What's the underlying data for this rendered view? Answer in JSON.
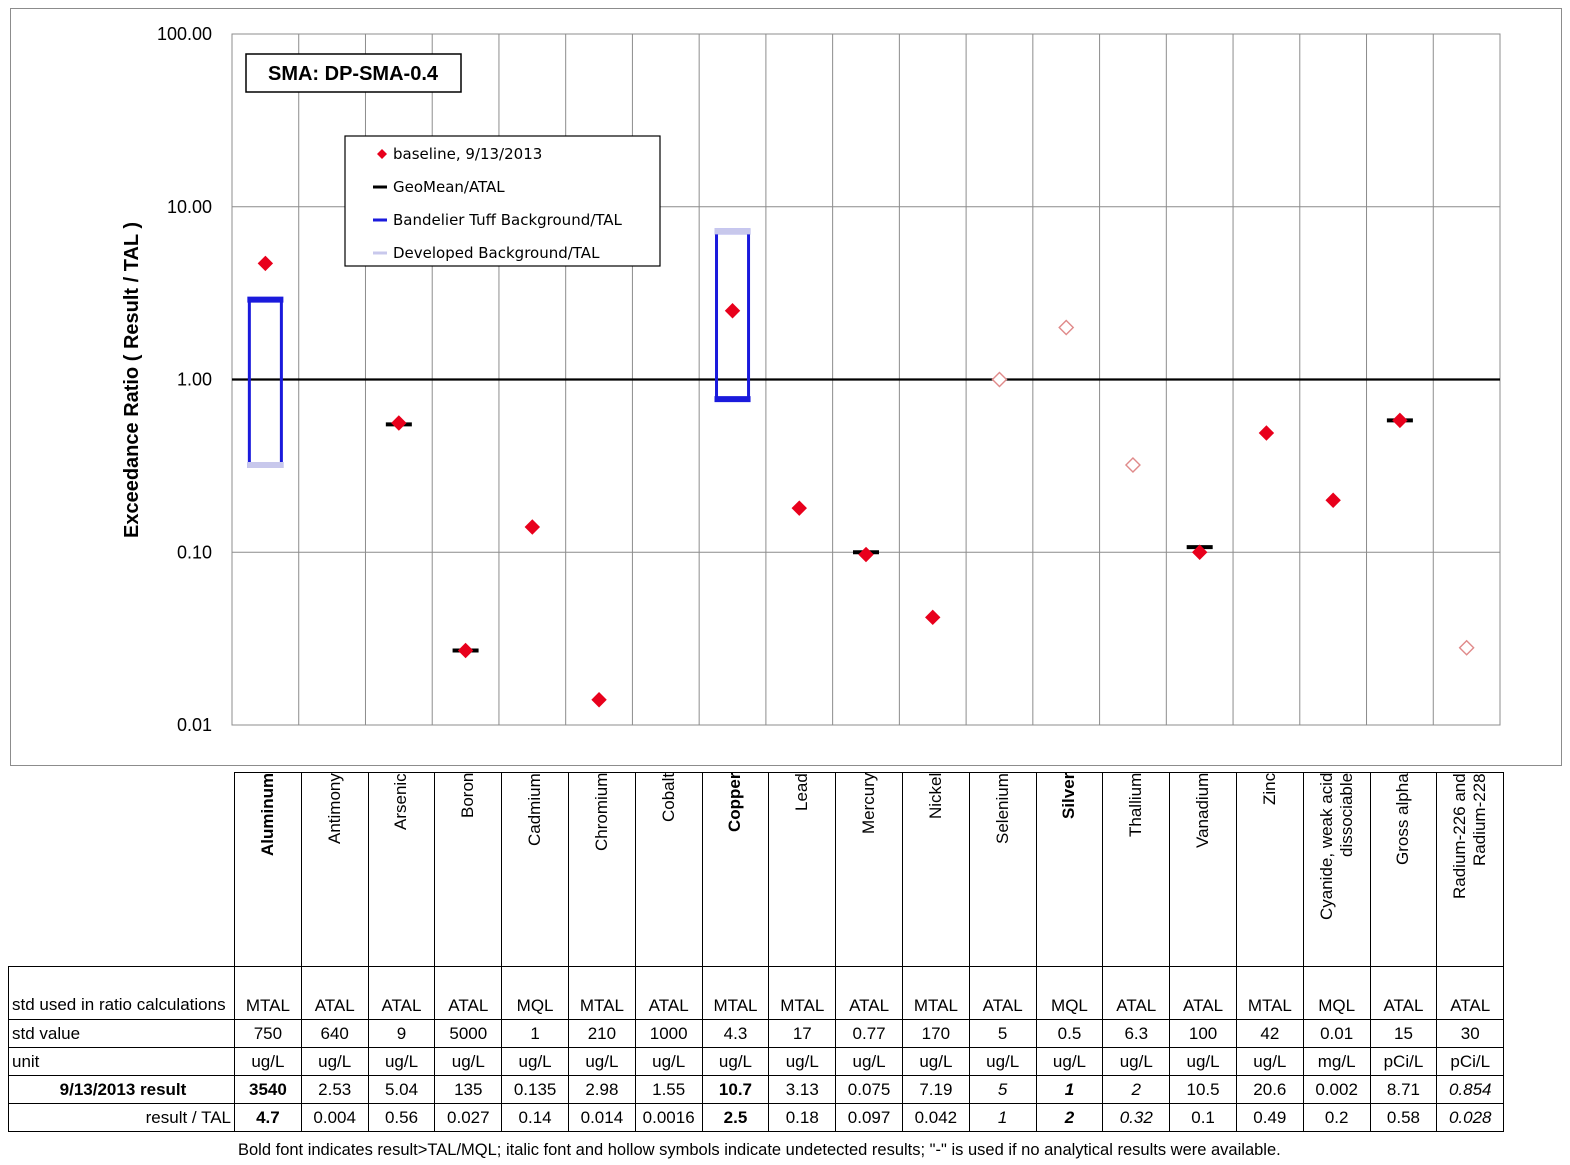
{
  "chart_data": {
    "type": "scatter",
    "title": "SMA: DP-SMA-0.4",
    "ylabel": "Exceedance Ratio  ( Result / TAL )",
    "yscale": "log",
    "ylim": [
      0.01,
      100
    ],
    "yticks": [
      "0.01",
      "0.10",
      "1.00",
      "10.00",
      "100.00"
    ],
    "reference_line": 1.0,
    "grid": true,
    "legend_position": "top-left",
    "legend": [
      {
        "label": "baseline, 9/13/2013",
        "color": "#e8001c",
        "marker": "diamond"
      },
      {
        "label": "GeoMean/ATAL",
        "color": "#000000",
        "marker": "dash"
      },
      {
        "label": "Bandelier Tuff Background/TAL",
        "color": "#1a1adc",
        "marker": "dash"
      },
      {
        "label": "Developed Background/TAL",
        "color": "#c8c8ec",
        "marker": "dash"
      }
    ],
    "categories": [
      "Aluminum",
      "Antimony",
      "Arsenic",
      "Boron",
      "Cadmium",
      "Chromium",
      "Cobalt",
      "Copper",
      "Lead",
      "Mercury",
      "Nickel",
      "Selenium",
      "Silver",
      "Thallium",
      "Vanadium",
      "Zinc",
      "Cyanide, weak acid dissociable",
      "Gross alpha",
      "Radium-226 and Radium-228"
    ],
    "series": [
      {
        "name": "baseline, 9/13/2013",
        "color": "#e8001c",
        "values": [
          4.7,
          null,
          0.56,
          0.027,
          0.14,
          0.014,
          null,
          2.5,
          0.18,
          0.097,
          0.042,
          1,
          2,
          0.32,
          0.1,
          0.49,
          0.2,
          0.58,
          0.028
        ],
        "detected": [
          true,
          true,
          true,
          true,
          true,
          true,
          true,
          true,
          true,
          true,
          true,
          false,
          false,
          false,
          true,
          true,
          true,
          true,
          false
        ]
      },
      {
        "name": "GeoMean/ATAL",
        "color": "#000000",
        "values": [
          null,
          null,
          0.55,
          0.027,
          null,
          null,
          null,
          null,
          null,
          0.1,
          null,
          null,
          null,
          null,
          0.107,
          null,
          null,
          0.58,
          null
        ]
      },
      {
        "name": "Bandelier Tuff Background/TAL",
        "color": "#1a1adc",
        "ranges": [
          [
            0.32,
            2.9
          ],
          null,
          null,
          null,
          null,
          null,
          null,
          [
            0.77,
            7.2
          ],
          null,
          null,
          null,
          null,
          null,
          null,
          null,
          null,
          null,
          null,
          null
        ]
      },
      {
        "name": "Developed Background/TAL",
        "color": "#c8c8ec",
        "ranges": [
          [
            0.32,
            2.9
          ],
          null,
          null,
          null,
          null,
          null,
          null,
          [
            0.77,
            7.2
          ],
          null,
          null,
          null,
          null,
          null,
          null,
          null,
          null,
          null,
          null,
          null
        ]
      }
    ]
  },
  "table": {
    "std_label": "std used in ratio calculations",
    "value_label": "std value",
    "unit_label": "unit",
    "result_label": "9/13/2013 result",
    "ratio_label": "result / TAL",
    "columns": [
      {
        "name": "Aluminum",
        "bold": true,
        "std": "MTAL",
        "value": "750",
        "unit": "ug/L",
        "result": "3540",
        "ratio": "4.7",
        "result_style": "bold",
        "ratio_style": "bold"
      },
      {
        "name": "Antimony",
        "bold": false,
        "std": "ATAL",
        "value": "640",
        "unit": "ug/L",
        "result": "2.53",
        "ratio": "0.004",
        "result_style": "",
        "ratio_style": ""
      },
      {
        "name": "Arsenic",
        "bold": false,
        "std": "ATAL",
        "value": "9",
        "unit": "ug/L",
        "result": "5.04",
        "ratio": "0.56",
        "result_style": "",
        "ratio_style": ""
      },
      {
        "name": "Boron",
        "bold": false,
        "std": "ATAL",
        "value": "5000",
        "unit": "ug/L",
        "result": "135",
        "ratio": "0.027",
        "result_style": "",
        "ratio_style": ""
      },
      {
        "name": "Cadmium",
        "bold": false,
        "std": "MQL",
        "value": "1",
        "unit": "ug/L",
        "result": "0.135",
        "ratio": "0.14",
        "result_style": "",
        "ratio_style": ""
      },
      {
        "name": "Chromium",
        "bold": false,
        "std": "MTAL",
        "value": "210",
        "unit": "ug/L",
        "result": "2.98",
        "ratio": "0.014",
        "result_style": "",
        "ratio_style": ""
      },
      {
        "name": "Cobalt",
        "bold": false,
        "std": "ATAL",
        "value": "1000",
        "unit": "ug/L",
        "result": "1.55",
        "ratio": "0.0016",
        "result_style": "",
        "ratio_style": ""
      },
      {
        "name": "Copper",
        "bold": true,
        "std": "MTAL",
        "value": "4.3",
        "unit": "ug/L",
        "result": "10.7",
        "ratio": "2.5",
        "result_style": "bold",
        "ratio_style": "bold"
      },
      {
        "name": "Lead",
        "bold": false,
        "std": "MTAL",
        "value": "17",
        "unit": "ug/L",
        "result": "3.13",
        "ratio": "0.18",
        "result_style": "",
        "ratio_style": ""
      },
      {
        "name": "Mercury",
        "bold": false,
        "std": "ATAL",
        "value": "0.77",
        "unit": "ug/L",
        "result": "0.075",
        "ratio": "0.097",
        "result_style": "",
        "ratio_style": ""
      },
      {
        "name": "Nickel",
        "bold": false,
        "std": "MTAL",
        "value": "170",
        "unit": "ug/L",
        "result": "7.19",
        "ratio": "0.042",
        "result_style": "",
        "ratio_style": ""
      },
      {
        "name": "Selenium",
        "bold": false,
        "std": "ATAL",
        "value": "5",
        "unit": "ug/L",
        "result": "5",
        "ratio": "1",
        "result_style": "ital",
        "ratio_style": "ital"
      },
      {
        "name": "Silver",
        "bold": true,
        "std": "MQL",
        "value": "0.5",
        "unit": "ug/L",
        "result": "1",
        "ratio": "2",
        "result_style": "bold ital",
        "ratio_style": "bold ital"
      },
      {
        "name": "Thallium",
        "bold": false,
        "std": "ATAL",
        "value": "6.3",
        "unit": "ug/L",
        "result": "2",
        "ratio": "0.32",
        "result_style": "ital",
        "ratio_style": "ital"
      },
      {
        "name": "Vanadium",
        "bold": false,
        "std": "ATAL",
        "value": "100",
        "unit": "ug/L",
        "result": "10.5",
        "ratio": "0.1",
        "result_style": "",
        "ratio_style": ""
      },
      {
        "name": "Zinc",
        "bold": false,
        "std": "MTAL",
        "value": "42",
        "unit": "ug/L",
        "result": "20.6",
        "ratio": "0.49",
        "result_style": "",
        "ratio_style": ""
      },
      {
        "name": "Cyanide, weak acid dissociable",
        "bold": false,
        "std": "MQL",
        "value": "0.01",
        "unit": "mg/L",
        "result": "0.002",
        "ratio": "0.2",
        "result_style": "",
        "ratio_style": ""
      },
      {
        "name": "Gross alpha",
        "bold": false,
        "std": "ATAL",
        "value": "15",
        "unit": "pCi/L",
        "result": "8.71",
        "ratio": "0.58",
        "result_style": "",
        "ratio_style": ""
      },
      {
        "name": "Radium-226 and Radium-228",
        "bold": false,
        "std": "ATAL",
        "value": "30",
        "unit": "pCi/L",
        "result": "0.854",
        "ratio": "0.028",
        "result_style": "ital",
        "ratio_style": "ital"
      }
    ]
  },
  "footnote": "Bold font indicates result>TAL/MQL;  italic font and hollow symbols indicate undetected results;  \"-\" is used if no analytical results were available."
}
